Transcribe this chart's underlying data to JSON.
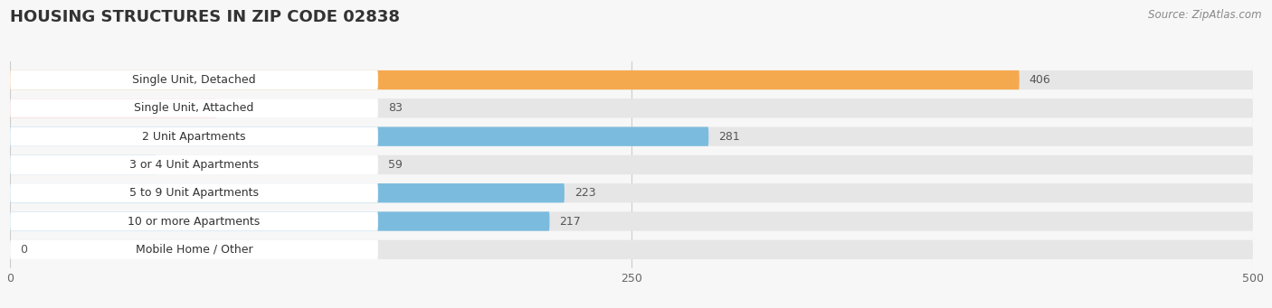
{
  "title": "HOUSING STRUCTURES IN ZIP CODE 02838",
  "source": "Source: ZipAtlas.com",
  "categories": [
    "Single Unit, Detached",
    "Single Unit, Attached",
    "2 Unit Apartments",
    "3 or 4 Unit Apartments",
    "5 to 9 Unit Apartments",
    "10 or more Apartments",
    "Mobile Home / Other"
  ],
  "values": [
    406,
    83,
    281,
    59,
    223,
    217,
    0
  ],
  "colors": [
    "#F5A94E",
    "#F0A0A0",
    "#7BBCDE",
    "#7BBCDE",
    "#7BBCDE",
    "#7BBCDE",
    "#C9A8C8"
  ],
  "xlim": [
    0,
    500
  ],
  "xticks": [
    0,
    250,
    500
  ],
  "background_color": "#f7f7f7",
  "bar_background": "#e6e6e6",
  "label_bg": "#ffffff",
  "title_fontsize": 13,
  "label_fontsize": 9,
  "value_fontsize": 9,
  "source_fontsize": 8.5
}
